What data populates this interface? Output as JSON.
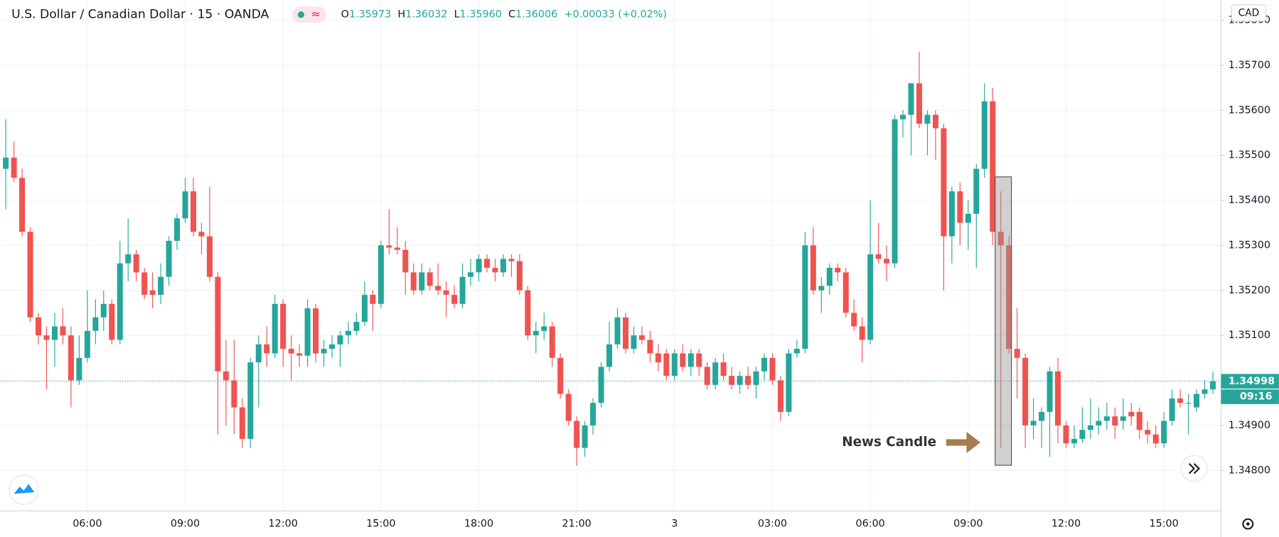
{
  "chart_data": {
    "type": "candlestick",
    "title": "U.S. Dollar / Canadian Dollar · 15 · OANDA",
    "ohlc_header": [
      {
        "label": "O",
        "value": "1.35973"
      },
      {
        "label": "H",
        "value": "1.36032"
      },
      {
        "label": "L",
        "value": "1.35960"
      },
      {
        "label": "C",
        "value": "1.36006"
      }
    ],
    "change": "+0.00033 (+0.02%)",
    "currency": "CAD",
    "last_price": "1.34998",
    "countdown": "09:16",
    "annotation": "News Candle",
    "up_color": "#26a69a",
    "down_color": "#ef5350",
    "grid": true,
    "ylim": [
      1.3471,
      1.35845
    ],
    "yticks": [
      {
        "value": 1.348,
        "label": "1.34800"
      },
      {
        "value": 1.349,
        "label": "1.34900"
      },
      {
        "value": 1.35,
        "label": "1.35000"
      },
      {
        "value": 1.351,
        "label": "1.35100"
      },
      {
        "value": 1.352,
        "label": "1.35200"
      },
      {
        "value": 1.353,
        "label": "1.35300"
      },
      {
        "value": 1.354,
        "label": "1.35400"
      },
      {
        "value": 1.355,
        "label": "1.35500"
      },
      {
        "value": 1.356,
        "label": "1.35600"
      },
      {
        "value": 1.357,
        "label": "1.35700"
      },
      {
        "value": 1.358,
        "label": "1.35800"
      }
    ],
    "categories": [
      null,
      null,
      null,
      null,
      null,
      null,
      null,
      null,
      null,
      null,
      "06:00",
      null,
      null,
      null,
      null,
      null,
      null,
      null,
      null,
      null,
      null,
      null,
      "09:00",
      null,
      null,
      null,
      null,
      null,
      null,
      null,
      null,
      null,
      null,
      null,
      "12:00",
      null,
      null,
      null,
      null,
      null,
      null,
      null,
      null,
      null,
      null,
      null,
      "15:00",
      null,
      null,
      null,
      null,
      null,
      null,
      null,
      null,
      null,
      null,
      null,
      "18:00",
      null,
      null,
      null,
      null,
      null,
      null,
      null,
      null,
      null,
      null,
      null,
      "21:00",
      null,
      null,
      null,
      null,
      null,
      null,
      null,
      null,
      null,
      null,
      null,
      "3",
      null,
      null,
      null,
      null,
      null,
      null,
      null,
      null,
      null,
      null,
      null,
      "03:00",
      null,
      null,
      null,
      null,
      null,
      null,
      null,
      null,
      null,
      null,
      null,
      "06:00",
      null,
      null,
      null,
      null,
      null,
      null,
      null,
      null,
      null,
      null,
      null,
      "09:00",
      null,
      null,
      null,
      null,
      null,
      null,
      null,
      null,
      null,
      null,
      null,
      "12:00",
      null,
      null,
      null,
      null,
      null,
      null,
      null,
      null,
      null,
      null,
      null,
      "15:00",
      null,
      null,
      null,
      null,
      null,
      null
    ],
    "open": [
      1.3547,
      1.35495,
      1.3545,
      1.3533,
      1.3514,
      1.351,
      1.3509,
      1.3512,
      1.351,
      1.35,
      1.3505,
      1.3511,
      1.3514,
      1.3517,
      1.3509,
      1.3526,
      1.3528,
      1.3524,
      1.352,
      1.3519,
      1.3523,
      1.3531,
      1.3536,
      1.3542,
      1.3533,
      1.3532,
      1.3523,
      1.3502,
      1.35,
      1.3494,
      1.3487,
      1.3504,
      1.3508,
      1.3506,
      1.3517,
      1.3507,
      1.3506,
      1.35055,
      1.3516,
      1.3506,
      1.3507,
      1.3508,
      1.351,
      1.3511,
      1.3513,
      1.3519,
      1.3517,
      1.353,
      1.35295,
      1.3529,
      1.3524,
      1.352,
      1.3524,
      1.3521,
      1.352,
      1.3519,
      1.3517,
      1.3523,
      1.3524,
      1.3527,
      1.3525,
      1.3524,
      1.3527,
      1.35265,
      1.352,
      1.351,
      1.3511,
      1.3512,
      1.3505,
      1.3497,
      1.3491,
      1.3485,
      1.349,
      1.3495,
      1.3503,
      1.3508,
      1.3514,
      1.3507,
      1.351,
      1.3509,
      1.3506,
      1.3506,
      1.3501,
      1.3506,
      1.3503,
      1.3506,
      1.3503,
      1.3499,
      1.3504,
      1.3501,
      1.3499,
      1.3501,
      1.3499,
      1.3502,
      1.3505,
      1.35,
      1.3493,
      1.3506,
      1.3507,
      1.353,
      1.352,
      1.3521,
      1.3525,
      1.3524,
      1.3515,
      1.3512,
      1.3509,
      1.3528,
      1.3527,
      1.3526,
      1.3558,
      1.3559,
      1.3566,
      1.3557,
      1.3559,
      1.3556,
      1.3532,
      1.3542,
      1.3535,
      1.3537,
      1.3547,
      1.3562,
      1.3533,
      1.353,
      1.3507,
      1.3505,
      1.349,
      1.3491,
      1.3493,
      1.3502,
      1.349,
      1.3486,
      1.3487,
      1.3489,
      1.349,
      1.3491,
      1.3492,
      1.3491,
      1.3493,
      1.3493,
      1.3489,
      1.3488,
      1.3486,
      1.3491,
      1.3496,
      1.3495,
      1.3494,
      1.3497,
      1.3498
    ],
    "high": [
      1.3558,
      1.3553,
      1.3547,
      1.3534,
      1.3515,
      1.3512,
      1.3515,
      1.3516,
      1.3512,
      1.351,
      1.352,
      1.3518,
      1.352,
      1.3518,
      1.3531,
      1.3536,
      1.3529,
      1.3525,
      1.3524,
      1.3526,
      1.3532,
      1.3537,
      1.3545,
      1.3545,
      1.3535,
      1.3543,
      1.3524,
      1.3509,
      1.3509,
      1.3496,
      1.3505,
      1.351,
      1.3512,
      1.3519,
      1.3518,
      1.351,
      1.3508,
      1.3518,
      1.3517,
      1.3509,
      1.351,
      1.3511,
      1.3513,
      1.3515,
      1.3522,
      1.352,
      1.3531,
      1.3538,
      1.3534,
      1.3531,
      1.3526,
      1.3526,
      1.3525,
      1.3526,
      1.3522,
      1.3521,
      1.3526,
      1.3527,
      1.3528,
      1.3528,
      1.3527,
      1.3528,
      1.3528,
      1.3528,
      1.3521,
      1.3513,
      1.3515,
      1.3513,
      1.3506,
      1.3498,
      1.3492,
      1.3491,
      1.3496,
      1.3504,
      1.3513,
      1.3516,
      1.3515,
      1.3512,
      1.3512,
      1.3511,
      1.3508,
      1.3507,
      1.3507,
      1.3508,
      1.3507,
      1.3507,
      1.3504,
      1.3505,
      1.3506,
      1.3503,
      1.3502,
      1.3503,
      1.3503,
      1.3506,
      1.3506,
      1.3501,
      1.3507,
      1.3509,
      1.3533,
      1.3534,
      1.3523,
      1.3526,
      1.3526,
      1.3525,
      1.3518,
      1.3514,
      1.354,
      1.3535,
      1.353,
      1.3559,
      1.356,
      1.3566,
      1.3573,
      1.356,
      1.356,
      1.3557,
      1.3543,
      1.3544,
      1.354,
      1.3548,
      1.3566,
      1.3565,
      1.3542,
      1.3532,
      1.3516,
      1.3506,
      1.3496,
      1.3494,
      1.3503,
      1.3505,
      1.3491,
      1.349,
      1.3494,
      1.3496,
      1.3494,
      1.3495,
      1.3494,
      1.3496,
      1.3495,
      1.3494,
      1.3491,
      1.349,
      1.3493,
      1.3498,
      1.3498,
      1.3497,
      1.3498,
      1.35,
      1.3502
    ],
    "low": [
      1.3538,
      1.3544,
      1.3532,
      1.3513,
      1.3508,
      1.3498,
      1.3503,
      1.3508,
      1.3494,
      1.3499,
      1.3504,
      1.3508,
      1.3511,
      1.3508,
      1.3508,
      1.3522,
      1.3522,
      1.3518,
      1.3516,
      1.3517,
      1.3521,
      1.3529,
      1.3535,
      1.3532,
      1.3528,
      1.3522,
      1.3488,
      1.349,
      1.3488,
      1.3485,
      1.3485,
      1.3494,
      1.3503,
      1.3505,
      1.3503,
      1.35,
      1.3503,
      1.3503,
      1.3504,
      1.3503,
      1.3505,
      1.3503,
      1.3508,
      1.351,
      1.3512,
      1.3511,
      1.3516,
      1.3528,
      1.3528,
      1.3519,
      1.3519,
      1.3519,
      1.352,
      1.3519,
      1.3514,
      1.3516,
      1.3516,
      1.3521,
      1.3522,
      1.3524,
      1.3522,
      1.3523,
      1.3523,
      1.3519,
      1.3509,
      1.3506,
      1.3509,
      1.3503,
      1.3496,
      1.349,
      1.3481,
      1.3483,
      1.3488,
      1.3494,
      1.3502,
      1.3507,
      1.3506,
      1.3506,
      1.3508,
      1.3504,
      1.3502,
      1.35,
      1.35,
      1.3502,
      1.3501,
      1.3501,
      1.3498,
      1.3498,
      1.35,
      1.3498,
      1.3497,
      1.3498,
      1.3496,
      1.35,
      1.3499,
      1.3491,
      1.3492,
      1.3505,
      1.3506,
      1.3519,
      1.3515,
      1.3519,
      1.3522,
      1.3514,
      1.3511,
      1.3504,
      1.3508,
      1.3526,
      1.3522,
      1.3525,
      1.3554,
      1.355,
      1.3556,
      1.355,
      1.3549,
      1.352,
      1.3526,
      1.353,
      1.3529,
      1.3525,
      1.3545,
      1.353,
      1.3485,
      1.3506,
      1.3496,
      1.3485,
      1.3487,
      1.3485,
      1.3483,
      1.3486,
      1.3485,
      1.3485,
      1.3486,
      1.3487,
      1.3488,
      1.3489,
      1.3487,
      1.3489,
      1.349,
      1.3487,
      1.3486,
      1.3485,
      1.3485,
      1.349,
      1.3494,
      1.3488,
      1.3493,
      1.3496,
      1.3497
    ],
    "close": [
      1.35495,
      1.3545,
      1.3533,
      1.3514,
      1.351,
      1.3509,
      1.3512,
      1.351,
      1.35,
      1.3505,
      1.3511,
      1.3514,
      1.3517,
      1.3509,
      1.3526,
      1.3528,
      1.3524,
      1.3519,
      1.3519,
      1.3523,
      1.3531,
      1.3536,
      1.3542,
      1.3533,
      1.3532,
      1.3523,
      1.3502,
      1.35,
      1.3494,
      1.3487,
      1.3504,
      1.3508,
      1.3506,
      1.3517,
      1.3507,
      1.3506,
      1.35055,
      1.3516,
      1.3506,
      1.3507,
      1.3508,
      1.351,
      1.3511,
      1.3513,
      1.3519,
      1.3517,
      1.353,
      1.35295,
      1.3529,
      1.3524,
      1.352,
      1.3524,
      1.3521,
      1.352,
      1.3519,
      1.3517,
      1.3523,
      1.3524,
      1.3527,
      1.3525,
      1.3524,
      1.3527,
      1.35265,
      1.352,
      1.351,
      1.3511,
      1.3512,
      1.3505,
      1.3497,
      1.3491,
      1.3485,
      1.349,
      1.3495,
      1.3503,
      1.3508,
      1.3514,
      1.3507,
      1.351,
      1.3509,
      1.3506,
      1.3504,
      1.3501,
      1.3506,
      1.3503,
      1.3506,
      1.3503,
      1.3499,
      1.3504,
      1.3501,
      1.3499,
      1.3501,
      1.3499,
      1.3502,
      1.3505,
      1.35,
      1.3493,
      1.3506,
      1.3507,
      1.353,
      1.352,
      1.3521,
      1.3525,
      1.3524,
      1.3515,
      1.3512,
      1.3509,
      1.3528,
      1.3527,
      1.3526,
      1.3558,
      1.3559,
      1.3566,
      1.3557,
      1.3559,
      1.3556,
      1.3532,
      1.3542,
      1.3535,
      1.3537,
      1.3547,
      1.3562,
      1.3533,
      1.353,
      1.3507,
      1.3505,
      1.349,
      1.3491,
      1.3493,
      1.3502,
      1.349,
      1.3486,
      1.3487,
      1.3489,
      1.349,
      1.3491,
      1.3492,
      1.349,
      1.3492,
      1.3492,
      1.3489,
      1.3488,
      1.3486,
      1.3491,
      1.3496,
      1.3495,
      1.3495,
      1.3497,
      1.3498,
      1.34998
    ]
  }
}
